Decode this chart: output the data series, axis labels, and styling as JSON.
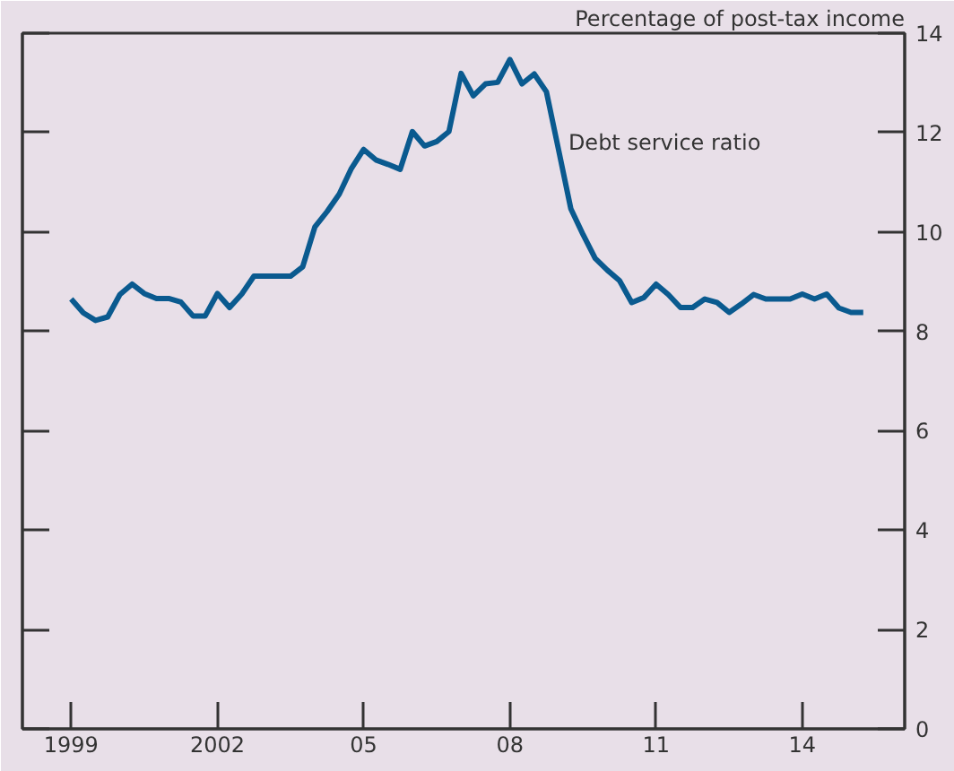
{
  "chart_data": {
    "type": "line",
    "ylabel": "Percentage of post-tax income",
    "x": [
      1999.0,
      1999.25,
      1999.5,
      1999.75,
      2000.0,
      2000.25,
      2000.5,
      2000.75,
      2001.0,
      2001.25,
      2001.5,
      2001.75,
      2002.0,
      2002.25,
      2002.5,
      2002.75,
      2003.0,
      2003.25,
      2003.5,
      2003.75,
      2004.0,
      2004.25,
      2004.5,
      2004.75,
      2005.0,
      2005.25,
      2005.5,
      2005.75,
      2006.0,
      2006.25,
      2006.5,
      2006.75,
      2007.0,
      2007.25,
      2007.5,
      2007.75,
      2008.0,
      2008.25,
      2008.5,
      2008.75,
      2009.0,
      2009.25,
      2009.5,
      2009.75,
      2010.0,
      2010.25,
      2010.5,
      2010.75,
      2011.0,
      2011.25,
      2011.5,
      2011.75,
      2012.0,
      2012.25,
      2012.5,
      2012.75,
      2013.0,
      2013.25,
      2013.5,
      2013.75,
      2014.0,
      2014.25,
      2014.5,
      2014.75,
      2015.0,
      2015.25
    ],
    "series": [
      {
        "color": "#0a5a8f",
        "values": [
          8.65,
          8.37,
          8.22,
          8.29,
          8.74,
          8.95,
          8.76,
          8.66,
          8.66,
          8.59,
          8.31,
          8.31,
          8.76,
          8.48,
          8.75,
          9.11,
          9.11,
          9.11,
          9.11,
          9.3,
          10.1,
          10.41,
          10.76,
          11.28,
          11.66,
          11.45,
          11.36,
          11.26,
          12.02,
          11.73,
          11.82,
          12.02,
          13.19,
          12.74,
          12.98,
          13.01,
          13.47,
          12.98,
          13.18,
          12.82,
          11.65,
          10.47,
          9.95,
          9.47,
          9.23,
          9.02,
          8.58,
          8.68,
          8.95,
          8.74,
          8.48,
          8.48,
          8.65,
          8.58,
          8.38,
          8.55,
          8.74,
          8.65,
          8.65,
          8.65,
          8.75,
          8.65,
          8.75,
          8.47,
          8.38,
          8.38
        ]
      }
    ],
    "annotations": [
      {
        "text": "Debt service ratio",
        "x": 2009.2,
        "y": 11.8
      }
    ],
    "xlim": [
      1998.0,
      2016.1
    ],
    "ylim": [
      0,
      14
    ],
    "xticks": [
      1999,
      2002,
      {
        "value": 2005,
        "label": "05"
      },
      {
        "value": 2008,
        "label": "08"
      },
      {
        "value": 2011,
        "label": "11"
      },
      {
        "value": 2014,
        "label": "14"
      }
    ],
    "yticks": [
      0,
      2,
      4,
      6,
      8,
      10,
      12,
      14
    ],
    "grid": false,
    "marker": "none",
    "line_style": "solid"
  }
}
